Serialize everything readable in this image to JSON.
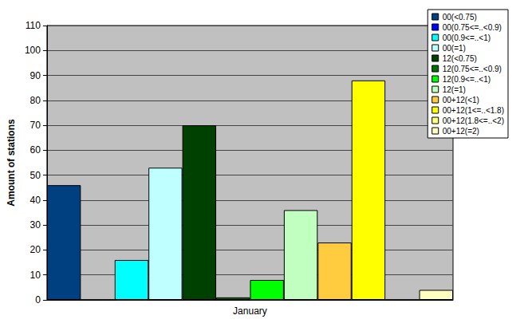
{
  "chart_data": {
    "type": "bar",
    "ylabel": "Amount of stations",
    "categories": [
      "January"
    ],
    "series": [
      {
        "name": "00(<0.75)",
        "color": "#003f80",
        "values": [
          46
        ]
      },
      {
        "name": "00(0.75<=..<0.9)",
        "color": "#0000ff",
        "values": [
          0
        ]
      },
      {
        "name": "00(0.9<=..<1)",
        "color": "#00ffff",
        "values": [
          16
        ]
      },
      {
        "name": "00(=1)",
        "color": "#c0ffff",
        "values": [
          53
        ]
      },
      {
        "name": "12(<0.75)",
        "color": "#004000",
        "values": [
          70
        ]
      },
      {
        "name": "12(0.75<=..<0.9)",
        "color": "#007000",
        "values": [
          1
        ]
      },
      {
        "name": "12(0.9<=..<1)",
        "color": "#00ff00",
        "values": [
          8
        ]
      },
      {
        "name": "12(=1)",
        "color": "#c0ffc0",
        "values": [
          36
        ]
      },
      {
        "name": "00+12(<1)",
        "color": "#ffcc40",
        "values": [
          23
        ]
      },
      {
        "name": "00+12(1<=..<1.8)",
        "color": "#ffff00",
        "values": [
          88
        ]
      },
      {
        "name": "00+12(1.8<=..<2)",
        "color": "#ffff80",
        "values": [
          0
        ]
      },
      {
        "name": "00+12(=2)",
        "color": "#ffffc0",
        "values": [
          4
        ]
      }
    ],
    "ylim": [
      0,
      110
    ],
    "yticks": [
      0,
      10,
      20,
      30,
      40,
      50,
      60,
      70,
      80,
      90,
      100,
      110
    ],
    "grid": true,
    "legend": "top-right"
  }
}
